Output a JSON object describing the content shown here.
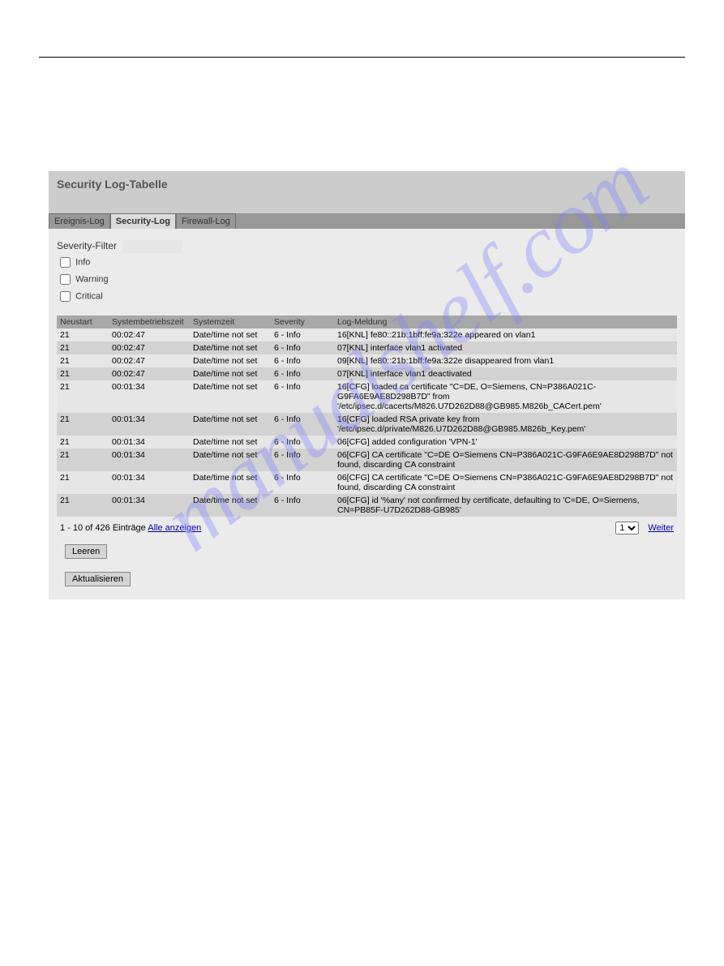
{
  "watermark": "manualshelf.com",
  "panel": {
    "title": "Security Log-Tabelle"
  },
  "tabs": [
    {
      "label": "Ereignis-Log"
    },
    {
      "label": "Security-Log"
    },
    {
      "label": "Firewall-Log"
    }
  ],
  "filter": {
    "label": "Severity-Filter",
    "items": [
      {
        "label": "Info"
      },
      {
        "label": "Warning"
      },
      {
        "label": "Critical"
      }
    ]
  },
  "table": {
    "headers": {
      "neustart": "Neustart",
      "sysbet": "Systembetriebszeit",
      "syszeit": "Systemzeit",
      "severity": "Severity",
      "meldung": "Log-Meldung"
    },
    "rows": [
      {
        "neustart": "21",
        "sysbet": "00:02:47",
        "syszeit": "Date/time not set",
        "severity": "6 - Info",
        "meldung": "16[KNL] fe80::21b:1bff:fe9a:322e appeared on vlan1"
      },
      {
        "neustart": "21",
        "sysbet": "00:02:47",
        "syszeit": "Date/time not set",
        "severity": "6 - Info",
        "meldung": "07[KNL] interface vlan1 activated"
      },
      {
        "neustart": "21",
        "sysbet": "00:02:47",
        "syszeit": "Date/time not set",
        "severity": "6 - Info",
        "meldung": "09[KNL] fe80::21b:1bff:fe9a:322e disappeared from vlan1"
      },
      {
        "neustart": "21",
        "sysbet": "00:02:47",
        "syszeit": "Date/time not set",
        "severity": "6 - Info",
        "meldung": "07[KNL] interface vlan1 deactivated"
      },
      {
        "neustart": "21",
        "sysbet": "00:01:34",
        "syszeit": "Date/time not set",
        "severity": "6 - Info",
        "meldung": "16[CFG] loaded ca certificate \"C=DE, O=Siemens, CN=P386A021C-G9FA6E9AE8D298B7D\" from '/etc/ipsec.d/cacerts/M826.U7D262D88@GB985.M826b_CACert.pem'"
      },
      {
        "neustart": "21",
        "sysbet": "00:01:34",
        "syszeit": "Date/time not set",
        "severity": "6 - Info",
        "meldung": "16[CFG] loaded RSA private key from '/etc/ipsec.d/private/M826.U7D262D88@GB985.M826b_Key.pem'"
      },
      {
        "neustart": "21",
        "sysbet": "00:01:34",
        "syszeit": "Date/time not set",
        "severity": "6 - Info",
        "meldung": "06[CFG] added configuration 'VPN-1'"
      },
      {
        "neustart": "21",
        "sysbet": "00:01:34",
        "syszeit": "Date/time not set",
        "severity": "6 - Info",
        "meldung": "06[CFG] CA certificate \"C=DE O=Siemens CN=P386A021C-G9FA6E9AE8D298B7D\" not found, discarding CA constraint"
      },
      {
        "neustart": "21",
        "sysbet": "00:01:34",
        "syszeit": "Date/time not set",
        "severity": "6 - Info",
        "meldung": "06[CFG] CA certificate \"C=DE O=Siemens CN=P386A021C-G9FA6E9AE8D298B7D\" not found, discarding CA constraint"
      },
      {
        "neustart": "21",
        "sysbet": "00:01:34",
        "syszeit": "Date/time not set",
        "severity": "6 - Info",
        "meldung": "06[CFG] id '%any' not confirmed by certificate, defaulting to 'C=DE, O=Siemens, CN=PB85F-U7D262D88-GB985'"
      }
    ]
  },
  "pagination": {
    "range_text": "1 - 10 of 426 Einträge ",
    "show_all": "Alle anzeigen",
    "next": "Weiter",
    "selected": "1"
  },
  "buttons": {
    "leeren": "Leeren",
    "aktualisieren": "Aktualisieren"
  }
}
